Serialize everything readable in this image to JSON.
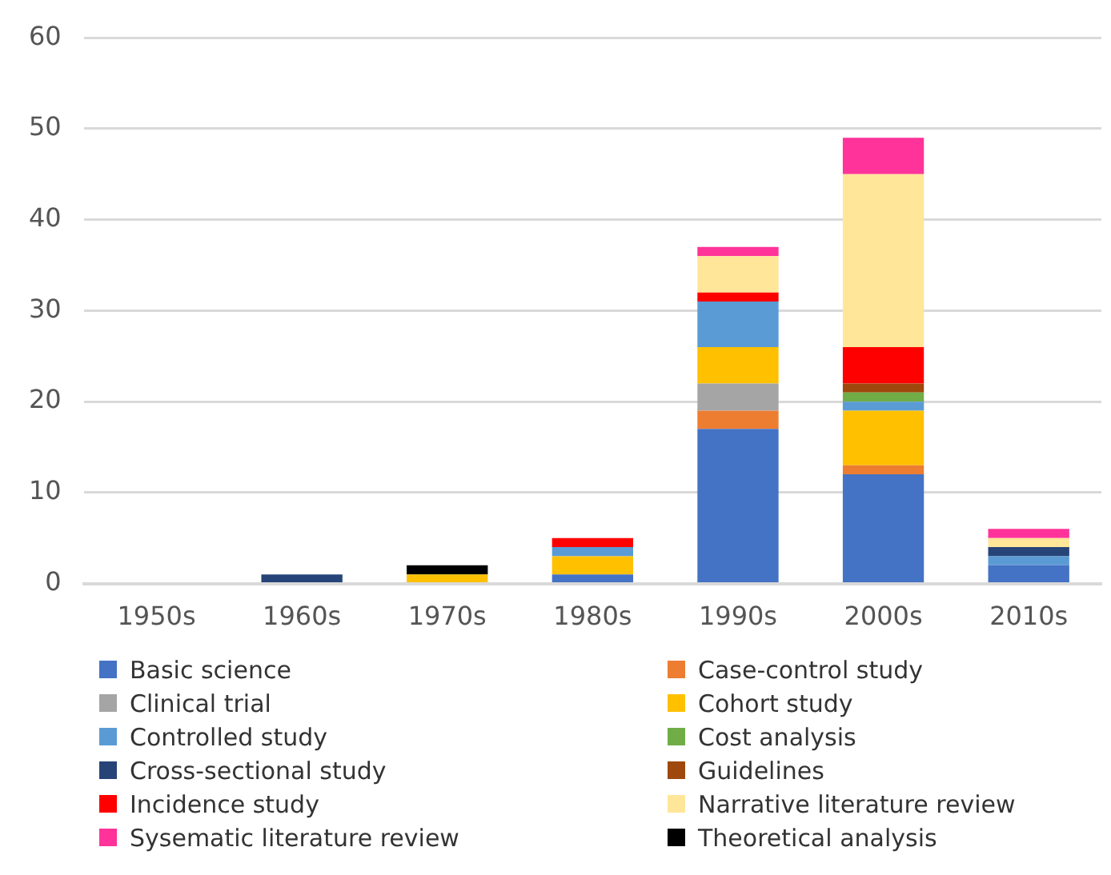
{
  "chart_data": {
    "type": "bar",
    "stacked": true,
    "categories": [
      "1950s",
      "1960s",
      "1970s",
      "1980s",
      "1990s",
      "2000s",
      "2010s"
    ],
    "series": [
      {
        "name": "Basic science",
        "color": "#4472c4",
        "values": [
          0,
          0,
          0,
          1,
          17,
          12,
          2
        ]
      },
      {
        "name": "Case-control study",
        "color": "#ed7d31",
        "values": [
          0,
          0,
          0,
          0,
          2,
          1,
          0
        ]
      },
      {
        "name": "Clinical trial",
        "color": "#a5a5a5",
        "values": [
          0,
          0,
          0,
          0,
          3,
          0,
          0
        ]
      },
      {
        "name": "Cohort study",
        "color": "#ffc000",
        "values": [
          0,
          0,
          1,
          2,
          4,
          6,
          0
        ]
      },
      {
        "name": "Controlled study",
        "color": "#5b9bd5",
        "values": [
          0,
          0,
          0,
          1,
          5,
          1,
          1
        ]
      },
      {
        "name": "Cost analysis",
        "color": "#70ad47",
        "values": [
          0,
          0,
          0,
          0,
          0,
          1,
          0
        ]
      },
      {
        "name": "Cross-sectional study",
        "color": "#264478",
        "values": [
          0,
          1,
          0,
          0,
          0,
          0,
          1
        ]
      },
      {
        "name": "Guidelines",
        "color": "#9e480e",
        "values": [
          0,
          0,
          0,
          0,
          0,
          1,
          0
        ]
      },
      {
        "name": "Incidence study",
        "color": "#ff0000",
        "values": [
          0,
          0,
          0,
          1,
          1,
          4,
          0
        ]
      },
      {
        "name": "Narrative literature review",
        "color": "#ffe699",
        "values": [
          0,
          0,
          0,
          0,
          4,
          19,
          1
        ]
      },
      {
        "name": "Sysematic literature review",
        "color": "#ff3399",
        "values": [
          0,
          0,
          0,
          0,
          1,
          4,
          1
        ]
      },
      {
        "name": "Theoretical analysis",
        "color": "#000000",
        "values": [
          0,
          0,
          1,
          0,
          0,
          0,
          0
        ]
      }
    ],
    "ylim": [
      0,
      60
    ],
    "yticks": [
      0,
      10,
      20,
      30,
      40,
      50,
      60
    ],
    "grid": "y",
    "legend": "bottom"
  }
}
